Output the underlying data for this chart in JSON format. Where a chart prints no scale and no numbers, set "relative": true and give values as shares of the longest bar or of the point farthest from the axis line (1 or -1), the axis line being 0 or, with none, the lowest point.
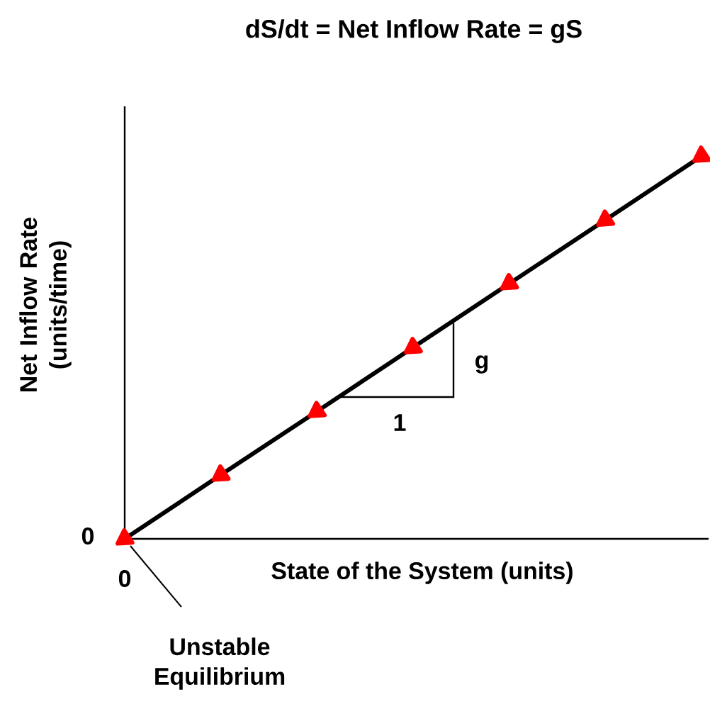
{
  "chart_data": {
    "type": "line",
    "title": "dS/dt = Net Inflow Rate = gS",
    "xlabel": "State of the System (units)",
    "ylabel": "Net Inflow Rate (units/time)",
    "relative": true,
    "categories": [
      null,
      null,
      null,
      null,
      null,
      null,
      null
    ],
    "series": [
      {
        "color": "#000000",
        "values": [
          0,
          0.167,
          0.333,
          0.5,
          0.667,
          0.833,
          1
        ]
      }
    ],
    "marker": "triangle",
    "line_style": "solid",
    "annotations": [
      "0",
      "0",
      "g",
      "1",
      "Unstable Equilibrium"
    ]
  }
}
